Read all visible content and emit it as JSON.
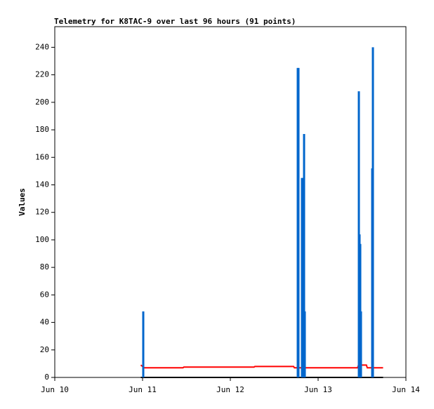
{
  "chart_data": {
    "type": "line",
    "title": "Telemetry for K8TAC-9 over last 96 hours (91 points)",
    "ylabel": "Values",
    "xlim": [
      0,
      4
    ],
    "xticks": [
      {
        "value": 0,
        "label": "Jun 10"
      },
      {
        "value": 1,
        "label": "Jun 11"
      },
      {
        "value": 2,
        "label": "Jun 12"
      },
      {
        "value": 3,
        "label": "Jun 13"
      },
      {
        "value": 4,
        "label": "Jun 14"
      }
    ],
    "ylim": [
      0,
      255
    ],
    "yticks": [
      0,
      20,
      40,
      60,
      80,
      100,
      120,
      140,
      160,
      180,
      200,
      220,
      240
    ],
    "series": [
      {
        "color": "#ff0000",
        "style": "line",
        "x": [
          0.98,
          1.02,
          1.46,
          1.47,
          2.27,
          2.28,
          2.72,
          2.73,
          3.45,
          3.46,
          3.55,
          3.56,
          3.74
        ],
        "values": [
          9,
          7,
          7,
          7.5,
          7.5,
          8,
          8,
          7,
          7,
          9,
          9,
          7,
          7
        ]
      },
      {
        "color": "#000000",
        "style": "line",
        "x": [
          0.98,
          3.74
        ],
        "values": [
          0,
          0
        ]
      },
      {
        "color": "#0066cc",
        "style": "impulse",
        "x": [
          1.008,
          2.768,
          2.776,
          2.816,
          2.824,
          2.84,
          2.848,
          3.464,
          3.472,
          3.48,
          3.488,
          3.616,
          3.624
        ],
        "values": [
          48,
          225,
          225,
          145,
          128,
          177,
          48,
          208,
          104,
          97,
          48,
          152,
          240
        ]
      }
    ]
  }
}
